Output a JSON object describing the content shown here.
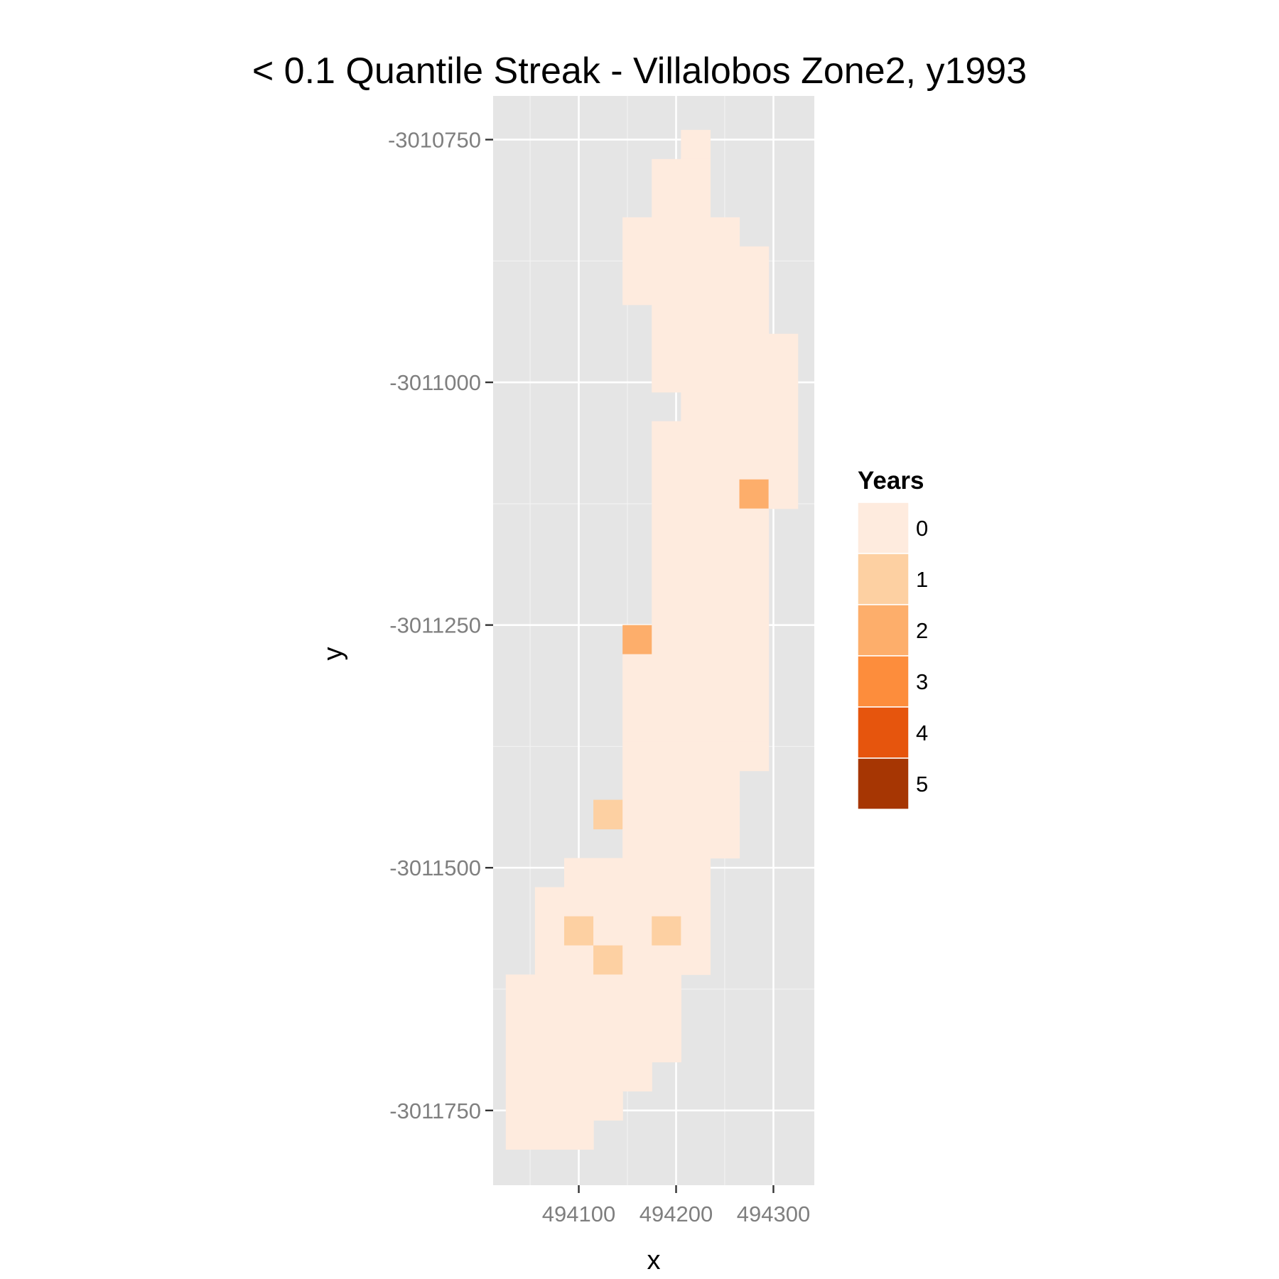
{
  "chart_data": {
    "type": "heatmap",
    "title": "< 0.1 Quantile Streak - Villalobos Zone2, y1993",
    "xlabel": "x",
    "ylabel": "y",
    "x_ticks": [
      494100,
      494200,
      494300
    ],
    "y_ticks": [
      -3010750,
      -3011000,
      -3011250,
      -3011500,
      -3011750
    ],
    "xlim": [
      494012,
      494342
    ],
    "ylim": [
      -3011827,
      -3010705
    ],
    "cell_size": 30,
    "grid": true,
    "legend": {
      "title": "Years",
      "position": "right",
      "levels": [
        {
          "label": "0",
          "color": "#FEEBDE"
        },
        {
          "label": "1",
          "color": "#FDD0A2"
        },
        {
          "label": "2",
          "color": "#FDAE6B"
        },
        {
          "label": "3",
          "color": "#FD8D3C"
        },
        {
          "label": "4",
          "color": "#E6550D"
        },
        {
          "label": "5",
          "color": "#A63603"
        }
      ]
    },
    "rows": [
      {
        "y": -3010755,
        "x_from": 494220,
        "x_to": 494220
      },
      {
        "y": -3010785,
        "x_from": 494190,
        "x_to": 494220
      },
      {
        "y": -3010815,
        "x_from": 494190,
        "x_to": 494220
      },
      {
        "y": -3010845,
        "x_from": 494160,
        "x_to": 494250
      },
      {
        "y": -3010875,
        "x_from": 494160,
        "x_to": 494280
      },
      {
        "y": -3010905,
        "x_from": 494160,
        "x_to": 494280
      },
      {
        "y": -3010935,
        "x_from": 494190,
        "x_to": 494280
      },
      {
        "y": -3010965,
        "x_from": 494190,
        "x_to": 494310
      },
      {
        "y": -3010995,
        "x_from": 494190,
        "x_to": 494310
      },
      {
        "y": -3011025,
        "x_from": 494220,
        "x_to": 494310
      },
      {
        "y": -3011055,
        "x_from": 494190,
        "x_to": 494310
      },
      {
        "y": -3011085,
        "x_from": 494190,
        "x_to": 494310
      },
      {
        "y": -3011115,
        "x_from": 494190,
        "x_to": 494310
      },
      {
        "y": -3011145,
        "x_from": 494190,
        "x_to": 494280
      },
      {
        "y": -3011175,
        "x_from": 494190,
        "x_to": 494280
      },
      {
        "y": -3011205,
        "x_from": 494190,
        "x_to": 494280
      },
      {
        "y": -3011235,
        "x_from": 494190,
        "x_to": 494280
      },
      {
        "y": -3011265,
        "x_from": 494160,
        "x_to": 494280
      },
      {
        "y": -3011295,
        "x_from": 494160,
        "x_to": 494280
      },
      {
        "y": -3011325,
        "x_from": 494160,
        "x_to": 494280
      },
      {
        "y": -3011355,
        "x_from": 494160,
        "x_to": 494280
      },
      {
        "y": -3011385,
        "x_from": 494160,
        "x_to": 494280
      },
      {
        "y": -3011415,
        "x_from": 494160,
        "x_to": 494250
      },
      {
        "y": -3011445,
        "x_from": 494130,
        "x_to": 494250
      },
      {
        "y": -3011475,
        "x_from": 494160,
        "x_to": 494250
      },
      {
        "y": -3011505,
        "x_from": 494100,
        "x_to": 494220
      },
      {
        "y": -3011535,
        "x_from": 494070,
        "x_to": 494220
      },
      {
        "y": -3011565,
        "x_from": 494070,
        "x_to": 494220
      },
      {
        "y": -3011595,
        "x_from": 494070,
        "x_to": 494220
      },
      {
        "y": -3011625,
        "x_from": 494040,
        "x_to": 494190
      },
      {
        "y": -3011655,
        "x_from": 494040,
        "x_to": 494190
      },
      {
        "y": -3011685,
        "x_from": 494040,
        "x_to": 494190
      },
      {
        "y": -3011715,
        "x_from": 494040,
        "x_to": 494160
      },
      {
        "y": -3011745,
        "x_from": 494040,
        "x_to": 494130
      },
      {
        "y": -3011775,
        "x_from": 494040,
        "x_to": 494100
      }
    ],
    "nonzero_cells": [
      {
        "x": 494280,
        "y": -3011115,
        "value": 2
      },
      {
        "x": 494160,
        "y": -3011265,
        "value": 2
      },
      {
        "x": 494130,
        "y": -3011445,
        "value": 1
      },
      {
        "x": 494100,
        "y": -3011565,
        "value": 1
      },
      {
        "x": 494190,
        "y": -3011565,
        "value": 1
      },
      {
        "x": 494130,
        "y": -3011595,
        "value": 1
      }
    ]
  }
}
